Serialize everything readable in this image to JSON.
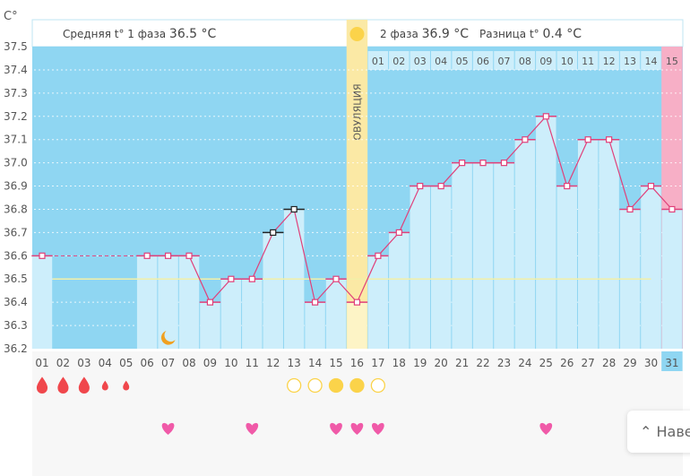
{
  "chart_data": {
    "type": "line",
    "title": "",
    "ylabel": "C°",
    "ylim": [
      36.2,
      37.5
    ],
    "yticks": [
      "37.5",
      "37.4",
      "37.3",
      "37.2",
      "37.1",
      "37.0",
      "36.9",
      "36.8",
      "36.7",
      "36.6",
      "36.5",
      "36.4",
      "36.3",
      "36.2"
    ],
    "days": [
      "01",
      "02",
      "03",
      "04",
      "05",
      "06",
      "07",
      "08",
      "09",
      "10",
      "11",
      "12",
      "13",
      "14",
      "15",
      "16",
      "17",
      "18",
      "19",
      "20",
      "21",
      "22",
      "23",
      "24",
      "25",
      "26",
      "27",
      "28",
      "29",
      "30",
      "31"
    ],
    "temps": [
      36.6,
      null,
      null,
      null,
      null,
      36.6,
      36.6,
      36.6,
      36.4,
      36.5,
      36.5,
      36.7,
      36.8,
      36.4,
      36.5,
      36.4,
      36.6,
      36.7,
      36.9,
      36.9,
      37.0,
      37.0,
      37.0,
      37.1,
      37.2,
      36.9,
      37.1,
      37.1,
      36.8,
      36.9,
      36.8
    ],
    "excluded_days": [
      12,
      13
    ],
    "coverline": 36.5,
    "ovulation_day": 16,
    "phase2_days": [
      "01",
      "02",
      "03",
      "04",
      "05",
      "06",
      "07",
      "08",
      "09",
      "10",
      "11",
      "12",
      "13",
      "14",
      "15"
    ],
    "current_day": 31,
    "bleeding": {
      "1": "heavy",
      "2": "heavy",
      "3": "heavy",
      "4": "light",
      "5": "light"
    },
    "mucus": {
      "13": "empty",
      "14": "empty",
      "15": "filled",
      "16": "filled",
      "17": "empty"
    },
    "hearts": [
      7,
      11,
      15,
      16,
      17,
      25
    ],
    "moon_day": 7,
    "colors": {
      "bg": "#8fd6f2",
      "bar": "#cdeefb",
      "line": "#e0407a",
      "ovulation": "#fbe9a5",
      "pink": "#f7afc6",
      "drop": "#f0474c",
      "sun": "#fbd34a"
    }
  },
  "header": {
    "phase1_label": "Средняя t° 1 фаза",
    "phase1_value": "36.5 °C",
    "phase2_label": "2 фаза",
    "phase2_value": "36.9 °C",
    "diff_label": "Разница t°",
    "diff_value": "0.4 °C",
    "ovulation_label": "ОВУЛЯЦИЯ"
  },
  "nav_button": "Наве"
}
